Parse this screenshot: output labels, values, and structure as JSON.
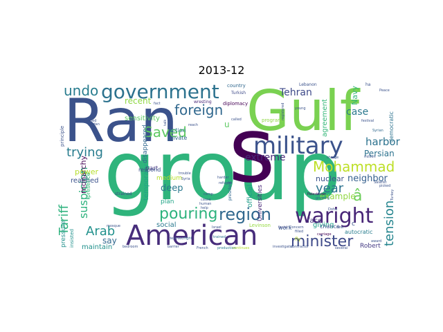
{
  "chart_data": {
    "type": "wordcloud",
    "title": "2013-12",
    "words": [
      {
        "text": "group",
        "weight": 100,
        "color": "#2fb47c"
      },
      {
        "text": "Ran",
        "weight": 90,
        "color": "#3b528b"
      },
      {
        "text": "Gulf",
        "weight": 85,
        "color": "#7ad151"
      },
      {
        "text": "s",
        "weight": 82,
        "color": "#440154"
      },
      {
        "text": "American",
        "weight": 48,
        "color": "#472d7b"
      },
      {
        "text": "military",
        "weight": 38,
        "color": "#3b528b"
      },
      {
        "text": "government",
        "weight": 34,
        "color": "#2c728e"
      },
      {
        "text": "waright",
        "weight": 33,
        "color": "#482677"
      },
      {
        "text": "region",
        "weight": 28,
        "color": "#31688e"
      },
      {
        "text": "pouring",
        "weight": 27,
        "color": "#2db27d"
      },
      {
        "text": "foreign",
        "weight": 25,
        "color": "#31688e"
      },
      {
        "text": "Mohammad",
        "weight": 24,
        "color": "#bddf26"
      },
      {
        "text": "minister",
        "weight": 24,
        "color": "#3e4a89"
      },
      {
        "text": "Tariff",
        "weight": 22,
        "color": "#2db27d"
      },
      {
        "text": "trying",
        "weight": 21,
        "color": "#287c8e"
      },
      {
        "text": "Saved",
        "weight": 21,
        "color": "#5ec962"
      },
      {
        "text": "Arab",
        "weight": 20,
        "color": "#21918c"
      },
      {
        "text": "undo",
        "weight": 20,
        "color": "#287c8e"
      },
      {
        "text": "â",
        "weight": 20,
        "color": "#6ccd5a"
      },
      {
        "text": "tension",
        "weight": 20,
        "color": "#25858e"
      },
      {
        "text": "year",
        "weight": 19,
        "color": "#2c728e"
      },
      {
        "text": "suspicion",
        "weight": 17,
        "color": "#2db27d"
      },
      {
        "text": "harbor",
        "weight": 16,
        "color": "#2c728e"
      },
      {
        "text": "Tehran",
        "weight": 15,
        "color": "#3e4a89"
      },
      {
        "text": "extreme",
        "weight": 15,
        "color": "#482878"
      },
      {
        "text": "case",
        "weight": 15,
        "color": "#2a788e"
      },
      {
        "text": "Persian",
        "weight": 14,
        "color": "#2c728e"
      },
      {
        "text": "neighbor",
        "weight": 14,
        "color": "#355f8d"
      },
      {
        "text": "example",
        "weight": 13,
        "color": "#90d743"
      },
      {
        "text": "deep",
        "weight": 14,
        "color": "#2a788e"
      },
      {
        "text": "recent",
        "weight": 14,
        "color": "#8fd744"
      },
      {
        "text": "say",
        "weight": 13,
        "color": "#31688e"
      },
      {
        "text": "monarchy",
        "weight": 12,
        "color": "#440154"
      },
      {
        "text": "official",
        "weight": 12,
        "color": "#1f9e89"
      },
      {
        "text": "nuclear",
        "weight": 12,
        "color": "#3b528b"
      },
      {
        "text": "Navy",
        "weight": 12,
        "color": "#35b779"
      },
      {
        "text": "agreement",
        "weight": 11,
        "color": "#35b779"
      },
      {
        "text": "temporary",
        "weight": 11,
        "color": "#20a486"
      },
      {
        "text": "sensitivity",
        "weight": 11,
        "color": "#5ec962"
      },
      {
        "text": "power",
        "weight": 11,
        "color": "#b5de2b"
      },
      {
        "text": "reached",
        "weight": 11,
        "color": "#3b528b"
      },
      {
        "text": "social",
        "weight": 11,
        "color": "#2a788e"
      },
      {
        "text": "maintain",
        "weight": 11,
        "color": "#21918c"
      },
      {
        "text": "giving",
        "weight": 11,
        "color": "#1fa188"
      },
      {
        "text": "face",
        "weight": 11,
        "color": "#46327e"
      },
      {
        "text": "pressure",
        "weight": 10,
        "color": "#21918c"
      },
      {
        "text": "disappeared",
        "weight": 10,
        "color": "#31688e"
      },
      {
        "text": "Universities",
        "weight": 10,
        "color": "#482878"
      },
      {
        "text": "plan",
        "weight": 10,
        "color": "#20a486"
      },
      {
        "text": "medium",
        "weight": 10,
        "color": "#b8de29"
      },
      {
        "text": "part",
        "weight": 10,
        "color": "#443983"
      },
      {
        "text": "Robert",
        "weight": 9,
        "color": "#443a83"
      },
      {
        "text": "chance",
        "weight": 9,
        "color": "#3b528b"
      },
      {
        "text": "work",
        "weight": 9,
        "color": "#39568c"
      },
      {
        "text": "autocratic",
        "weight": 9,
        "color": "#287d8e"
      },
      {
        "text": "democratic",
        "weight": 9,
        "color": "#2c728e"
      },
      {
        "text": "presence",
        "weight": 9,
        "color": "#35b779"
      },
      {
        "text": "insisted",
        "weight": 8,
        "color": "#21918c"
      },
      {
        "text": "principle",
        "weight": 8,
        "color": "#3b528b"
      },
      {
        "text": "action",
        "weight": 8,
        "color": "#2a788e"
      },
      {
        "text": "private",
        "weight": 8,
        "color": "#31688e"
      },
      {
        "text": "respond",
        "weight": 8,
        "color": "#3b528b"
      },
      {
        "text": "program",
        "weight": 8,
        "color": "#8fd744"
      },
      {
        "text": "diplomacy",
        "weight": 8,
        "color": "#440154"
      },
      {
        "text": "country",
        "weight": 8,
        "color": "#31688e"
      },
      {
        "text": "wresting",
        "weight": 7,
        "color": "#482677"
      },
      {
        "text": "Turkish",
        "weight": 7,
        "color": "#3e4a89"
      },
      {
        "text": "Lebanon",
        "weight": 7,
        "color": "#3b528b"
      },
      {
        "text": "president",
        "weight": 7,
        "color": "#31688e"
      },
      {
        "text": "strained",
        "weight": 7,
        "color": "#3e4a89"
      },
      {
        "text": "Levinson",
        "weight": 7,
        "color": "#95d840"
      },
      {
        "text": "Israel",
        "weight": 6,
        "color": "#3b528b"
      },
      {
        "text": "trained",
        "weight": 6,
        "color": "#2c728e"
      },
      {
        "text": "facial",
        "weight": 6,
        "color": "#3e4a89"
      },
      {
        "text": "Concern",
        "weight": 6,
        "color": "#3b528b"
      },
      {
        "text": "carriage",
        "weight": 6,
        "color": "#440154"
      },
      {
        "text": "Palestinian",
        "weight": 6,
        "color": "#440154"
      },
      {
        "text": "growing",
        "weight": 6,
        "color": "#31688e"
      },
      {
        "text": "charge",
        "weight": 6,
        "color": "#3b528b"
      },
      {
        "text": "million",
        "weight": 6,
        "color": "#3b528b"
      },
      {
        "text": "festival",
        "weight": 6,
        "color": "#3b528b"
      },
      {
        "text": "Syrian",
        "weight": 6,
        "color": "#31688e"
      },
      {
        "text": "Salafist",
        "weight": 6,
        "color": "#3b528b"
      },
      {
        "text": "picked",
        "weight": 6,
        "color": "#3b528b"
      },
      {
        "text": "award",
        "weight": 6,
        "color": "#3b528b"
      },
      {
        "text": "several",
        "weight": 6,
        "color": "#3b528b"
      },
      {
        "text": "investigator",
        "weight": 6,
        "color": "#3b528b"
      },
      {
        "text": "contractor",
        "weight": 6,
        "color": "#3b528b"
      },
      {
        "text": "production",
        "weight": 6,
        "color": "#2a788e"
      },
      {
        "text": "continues",
        "weight": 6,
        "color": "#b5de2b"
      },
      {
        "text": "French",
        "weight": 6,
        "color": "#3b528b"
      },
      {
        "text": "barrier",
        "weight": 6,
        "color": "#3b528b"
      },
      {
        "text": "bedroom",
        "weight": 6,
        "color": "#3b528b"
      },
      {
        "text": "mosque",
        "weight": 6,
        "color": "#3b528b"
      },
      {
        "text": "fight",
        "weight": 6,
        "color": "#31688e"
      },
      {
        "text": "deposed",
        "weight": 6,
        "color": "#3b528b"
      },
      {
        "text": "camp",
        "weight": 6,
        "color": "#3b528b"
      },
      {
        "text": "harder",
        "weight": 6,
        "color": "#3b528b"
      },
      {
        "text": "refugee",
        "weight": 6,
        "color": "#3b528b"
      },
      {
        "text": "cause",
        "weight": 6,
        "color": "#3b528b"
      },
      {
        "text": "human",
        "weight": 6,
        "color": "#3b528b"
      },
      {
        "text": "help",
        "weight": 6,
        "color": "#3b528b"
      },
      {
        "text": "reach",
        "weight": 6,
        "color": "#3b528b"
      },
      {
        "text": "trouble",
        "weight": 6,
        "color": "#3b528b"
      },
      {
        "text": "Syria",
        "weight": 6,
        "color": "#3b528b"
      },
      {
        "text": "fly",
        "weight": 7,
        "color": "#bddf26"
      },
      {
        "text": "filled",
        "weight": 6,
        "color": "#3b528b"
      },
      {
        "text": "registered",
        "weight": 6,
        "color": "#3b528b"
      },
      {
        "text": "young",
        "weight": 6,
        "color": "#3b528b"
      },
      {
        "text": "called",
        "weight": 6,
        "color": "#3b528b"
      },
      {
        "text": "talk",
        "weight": 5,
        "color": "#3b528b"
      },
      {
        "text": "Jordan",
        "weight": 5,
        "color": "#3b528b"
      },
      {
        "text": "fact",
        "weight": 5,
        "color": "#3b528b"
      },
      {
        "text": "Ashamed",
        "weight": 5,
        "color": "#3b528b"
      },
      {
        "text": "Peace",
        "weight": 5,
        "color": "#3b528b"
      },
      {
        "text": "Turkey",
        "weight": 5,
        "color": "#3b528b"
      },
      {
        "text": "Doha",
        "weight": 5,
        "color": "#3b528b"
      },
      {
        "text": "new",
        "weight": 5,
        "color": "#3b528b"
      },
      {
        "text": "ha",
        "weight": 5,
        "color": "#3b528b"
      },
      {
        "text": "u",
        "weight": 9,
        "color": "#5ec962"
      },
      {
        "text": "c",
        "weight": 8,
        "color": "#3b528b"
      }
    ]
  }
}
